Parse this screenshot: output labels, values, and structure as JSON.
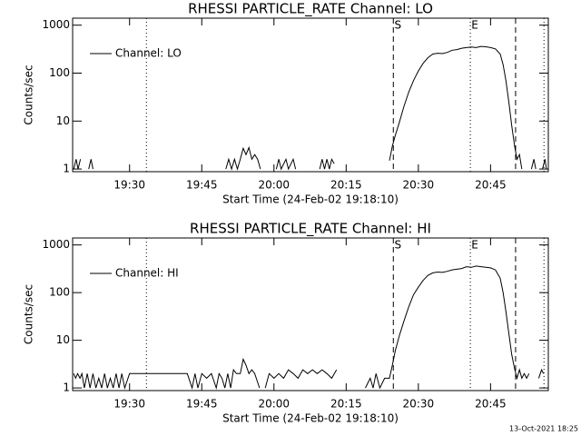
{
  "chart_data": [
    {
      "type": "line",
      "title": "RHESSI PARTICLE_RATE Channel: LO",
      "y_label": "Counts/sec",
      "x_label": "Start Time (24-Feb-02 19:18:10)",
      "log_y": true,
      "ylim": [
        0.88,
        1400
      ],
      "yticks": [
        1,
        10,
        100,
        1000
      ],
      "xlim": [
        1158.17,
        1257
      ],
      "xticks": [
        {
          "value": 1170,
          "label": "19:30"
        },
        {
          "value": 1185,
          "label": "19:45"
        },
        {
          "value": 1200,
          "label": "20:00"
        },
        {
          "value": 1215,
          "label": "20:15"
        },
        {
          "value": 1230,
          "label": "20:30"
        },
        {
          "value": 1245,
          "label": "20:45"
        }
      ],
      "legend": "top-left",
      "markers": [
        {
          "x": 1173.5,
          "style": "dotted"
        },
        {
          "x": 1224.8,
          "style": "dashed",
          "label": "S"
        },
        {
          "x": 1240.8,
          "style": "dotted",
          "label": "E"
        },
        {
          "x": 1250.2,
          "style": "dashed"
        },
        {
          "x": 1256.1,
          "style": "dotted"
        }
      ],
      "series": [
        {
          "name": "Channel: LO",
          "color": "#000000",
          "x": [
            1158.4,
            1158.9,
            1159.3,
            1159.8,
            1160.2,
            1161.5,
            1162,
            1162.4,
            1163,
            1190,
            1190.6,
            1191.2,
            1191.8,
            1192.4,
            1193,
            1193.6,
            1194.2,
            1194.8,
            1195.4,
            1196,
            1196.6,
            1197.2,
            1197.8,
            1200.5,
            1201,
            1201.5,
            1202.5,
            1203,
            1204,
            1204.5,
            1205.2,
            1209.5,
            1210,
            1210.5,
            1211,
            1211.5,
            1212,
            1212.5,
            1213,
            1224,
            1224.6,
            1225.2,
            1226,
            1227,
            1228,
            1229,
            1230,
            1231,
            1232,
            1233,
            1234,
            1235,
            1236,
            1237,
            1238,
            1239,
            1240,
            1241,
            1242,
            1243,
            1244,
            1245,
            1246,
            1247,
            1247.6,
            1248.2,
            1248.8,
            1249.4,
            1250,
            1250.5,
            1251,
            1251.5,
            1252,
            1253.5,
            1254,
            1254.4,
            1255,
            1255.8,
            1256.3,
            1256.6
          ],
          "values": [
            1,
            1.6,
            1,
            1.6,
            null,
            1,
            1.6,
            1,
            null,
            1,
            1.6,
            1,
            1.6,
            1,
            1.6,
            2.7,
            2,
            2.8,
            1.6,
            2,
            1.6,
            1,
            null,
            1,
            1.6,
            1,
            1.6,
            1,
            1.6,
            1,
            null,
            1,
            1.6,
            1,
            1.6,
            1,
            1.6,
            1.3,
            null,
            1.5,
            3,
            5,
            9,
            20,
            40,
            70,
            110,
            160,
            210,
            250,
            260,
            255,
            270,
            300,
            310,
            330,
            340,
            350,
            340,
            360,
            355,
            340,
            320,
            250,
            150,
            70,
            25,
            8,
            3,
            1.6,
            2,
            1,
            null,
            1,
            1.6,
            1,
            null,
            1,
            1.6,
            1
          ]
        }
      ],
      "footer": null
    },
    {
      "type": "line",
      "title": "RHESSI PARTICLE_RATE Channel: HI",
      "y_label": "Counts/sec",
      "x_label": "Start Time (24-Feb-02 19:18:10)",
      "log_y": true,
      "ylim": [
        0.88,
        1400
      ],
      "yticks": [
        1,
        10,
        100,
        1000
      ],
      "xlim": [
        1158.17,
        1257
      ],
      "xticks": [
        {
          "value": 1170,
          "label": "19:30"
        },
        {
          "value": 1185,
          "label": "19:45"
        },
        {
          "value": 1200,
          "label": "20:00"
        },
        {
          "value": 1215,
          "label": "20:15"
        },
        {
          "value": 1230,
          "label": "20:30"
        },
        {
          "value": 1245,
          "label": "20:45"
        }
      ],
      "legend": "top-left",
      "markers": [
        {
          "x": 1173.5,
          "style": "dotted"
        },
        {
          "x": 1224.8,
          "style": "dashed",
          "label": "S"
        },
        {
          "x": 1240.8,
          "style": "dotted",
          "label": "E"
        },
        {
          "x": 1250.2,
          "style": "dashed"
        },
        {
          "x": 1256.1,
          "style": "dotted"
        }
      ],
      "series": [
        {
          "name": "Channel: HI",
          "color": "#000000",
          "x": [
            1158.4,
            1158.8,
            1159.2,
            1159.7,
            1160.1,
            1160.6,
            1161.2,
            1161.8,
            1162.4,
            1163,
            1163.6,
            1164.2,
            1164.8,
            1165.4,
            1166,
            1166.6,
            1167.2,
            1167.8,
            1168.4,
            1169,
            1170,
            1172,
            1174,
            1176,
            1178,
            1180,
            1182,
            1183,
            1183.6,
            1184.2,
            1185,
            1186,
            1187,
            1188,
            1188.6,
            1189.2,
            1189.8,
            1190.4,
            1191,
            1191.6,
            1192.2,
            1193,
            1193.6,
            1194.2,
            1194.8,
            1195.4,
            1196,
            1197,
            1197.6,
            1198.2,
            1199,
            1200,
            1201,
            1202,
            1203,
            1204,
            1205,
            1206,
            1207,
            1208,
            1209,
            1210,
            1211,
            1212,
            1213,
            1214,
            1219,
            1220,
            1220.6,
            1221.2,
            1222,
            1223,
            1224,
            1224.6,
            1225.2,
            1226,
            1227,
            1228,
            1229,
            1230,
            1231,
            1232,
            1233,
            1234,
            1235,
            1236,
            1237,
            1238,
            1239,
            1240,
            1241,
            1242,
            1243,
            1244,
            1245,
            1246,
            1247,
            1247.6,
            1248.2,
            1248.8,
            1249.4,
            1250,
            1250.5,
            1251,
            1251.5,
            1252,
            1252.5,
            1253,
            1254,
            1255,
            1255.6,
            1256
          ],
          "values": [
            2,
            1.6,
            2,
            1.6,
            2,
            1,
            2,
            1,
            2,
            1,
            1.6,
            1,
            2,
            1,
            1.6,
            1,
            2,
            1,
            2,
            1,
            2,
            2,
            2,
            2,
            2,
            2,
            2,
            1,
            2,
            1,
            2,
            1.6,
            2,
            1,
            2,
            1.6,
            1,
            2,
            1,
            2.4,
            2,
            2,
            4,
            3,
            2,
            2.4,
            2,
            1,
            null,
            1,
            2,
            1.6,
            2,
            1.6,
            2.4,
            2,
            1.6,
            2.4,
            2,
            2.4,
            2,
            2.4,
            2,
            1.6,
            2.4,
            null,
            1,
            1.6,
            1,
            2,
            1,
            1.6,
            1.6,
            3,
            6,
            12,
            25,
            50,
            90,
            130,
            180,
            230,
            260,
            270,
            265,
            280,
            300,
            310,
            320,
            350,
            340,
            360,
            350,
            340,
            330,
            300,
            200,
            100,
            40,
            14,
            5,
            2.5,
            1.6,
            2.4,
            1.6,
            2,
            1.6,
            2,
            null,
            1.6,
            2.4,
            2
          ]
        }
      ],
      "footer": "13-Oct-2021 18:25"
    }
  ]
}
